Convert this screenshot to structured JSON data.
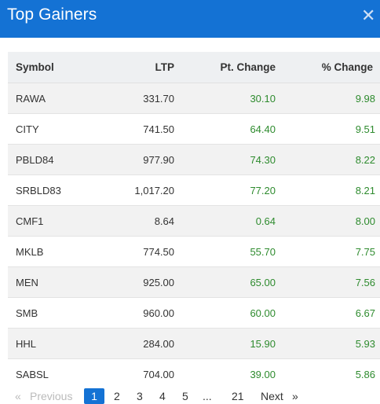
{
  "header": {
    "title": "Top Gainers",
    "close_icon": "close-icon"
  },
  "table": {
    "columns": [
      "Symbol",
      "LTP",
      "Pt. Change",
      "% Change"
    ],
    "rows": [
      {
        "symbol": "RAWA",
        "ltp": "331.70",
        "pt_change": "30.10",
        "pct_change": "9.98"
      },
      {
        "symbol": "CITY",
        "ltp": "741.50",
        "pt_change": "64.40",
        "pct_change": "9.51"
      },
      {
        "symbol": "PBLD84",
        "ltp": "977.90",
        "pt_change": "74.30",
        "pct_change": "8.22"
      },
      {
        "symbol": "SRBLD83",
        "ltp": "1,017.20",
        "pt_change": "77.20",
        "pct_change": "8.21"
      },
      {
        "symbol": "CMF1",
        "ltp": "8.64",
        "pt_change": "0.64",
        "pct_change": "8.00"
      },
      {
        "symbol": "MKLB",
        "ltp": "774.50",
        "pt_change": "55.70",
        "pct_change": "7.75"
      },
      {
        "symbol": "MEN",
        "ltp": "925.00",
        "pt_change": "65.00",
        "pct_change": "7.56"
      },
      {
        "symbol": "SMB",
        "ltp": "960.00",
        "pt_change": "60.00",
        "pct_change": "6.67"
      },
      {
        "symbol": "HHL",
        "ltp": "284.00",
        "pt_change": "15.90",
        "pct_change": "5.93"
      },
      {
        "symbol": "SABSL",
        "ltp": "704.00",
        "pt_change": "39.00",
        "pct_change": "5.86"
      }
    ]
  },
  "pagination": {
    "first_arrow": "«",
    "previous_label": "Previous",
    "pages": [
      "1",
      "2",
      "3",
      "4",
      "5"
    ],
    "ellipsis": "...",
    "last_page": "21",
    "next_label": "Next",
    "last_arrow": "»",
    "current_page": "1"
  },
  "colors": {
    "header_bg": "#1472d4",
    "positive": "#2e8b2e"
  }
}
